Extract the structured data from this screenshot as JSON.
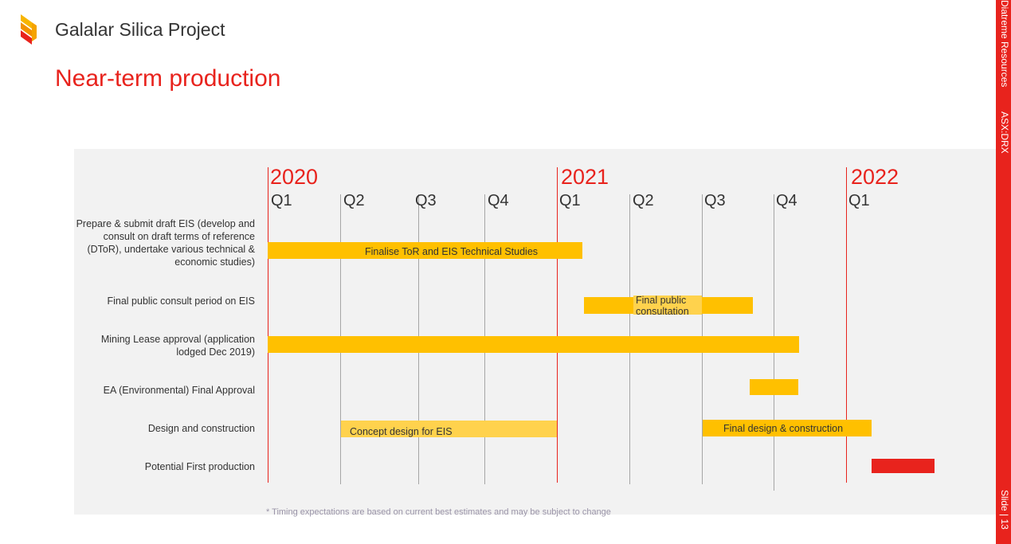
{
  "header": {
    "logo_icon": "diatreme-chevron-logo",
    "project": "Galalar Silica Project",
    "title": "Near-term production"
  },
  "sidebar": {
    "company": "Diatreme Resources",
    "ticker": "ASX:DRX",
    "slide": "Slide | 13"
  },
  "gantt": {
    "years": [
      "2020",
      "2021",
      "2022"
    ],
    "quarters": [
      "Q1",
      "Q2",
      "Q3",
      "Q4",
      "Q1",
      "Q2",
      "Q3",
      "Q4",
      "Q1"
    ],
    "tasks": [
      {
        "label": "Prepare & submit draft EIS (develop and consult on draft terms of reference (DToR), undertake various technical & economic studies)",
        "bar_label": "Finalise ToR and EIS Technical Studies"
      },
      {
        "label": "Final public consult period on EIS",
        "bar_label": "Final public consultation"
      },
      {
        "label": "Mining Lease approval (application lodged Dec 2019)"
      },
      {
        "label": "EA (Environmental) Final Approval"
      },
      {
        "label": "Design and construction",
        "bar_label_1": "Concept design for EIS",
        "bar_label_2": "Final design & construction"
      },
      {
        "label": "Potential First production"
      }
    ],
    "colors": {
      "year_line": "#e8231d",
      "quarter_line": "#a6a6a6",
      "bar": "#ffc000",
      "bar_light": "#ffd24d",
      "production": "#e8231d"
    }
  },
  "footnote": "* Timing expectations are based on current best estimates and may be subject to change"
}
